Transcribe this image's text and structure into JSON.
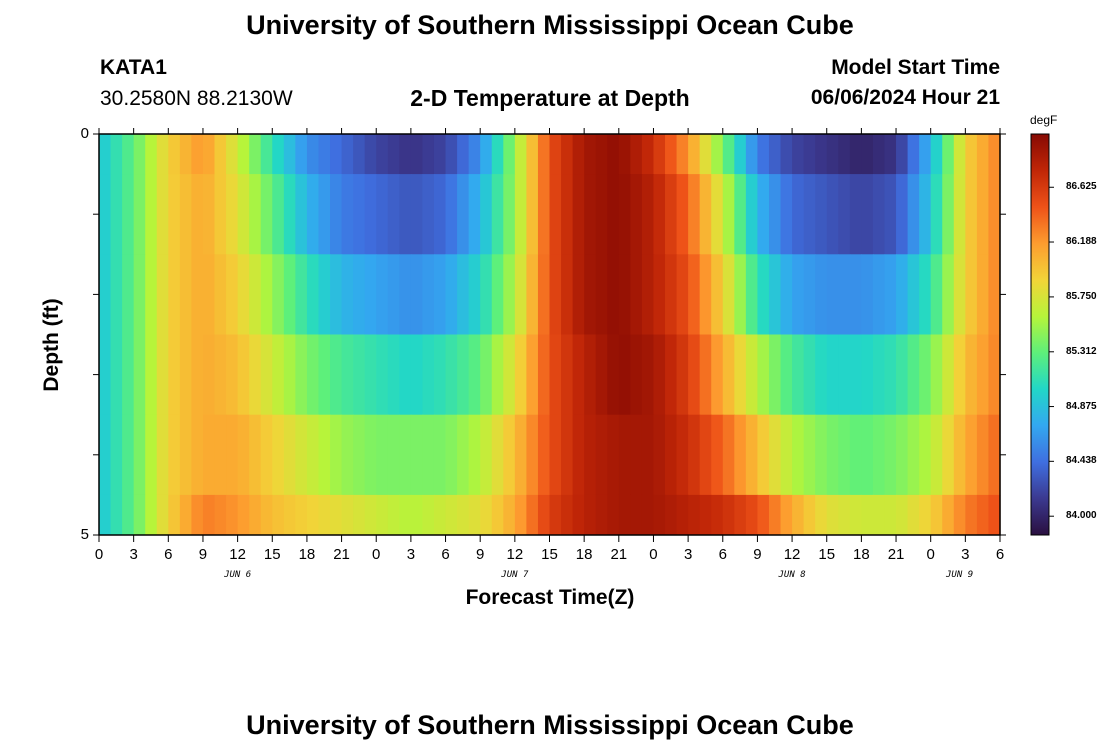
{
  "header": {
    "title": "University of Southern Mississippi Ocean Cube",
    "station": "KATA1",
    "coordinates": "30.2580N  88.2130W",
    "plot_title": "2-D Temperature at Depth",
    "model_start_label": "Model Start Time",
    "model_start_value": "06/06/2024 Hour 21",
    "footer_title": "University of Southern Mississippi Ocean Cube"
  },
  "chart_data": {
    "type": "heatmap",
    "title": "2-D Temperature at Depth",
    "xlabel": "Forecast Time(Z)",
    "ylabel": "Depth (ft)",
    "ylim": [
      0,
      5
    ],
    "yticks": [
      "0",
      "5"
    ],
    "xticks": [
      "0",
      "3",
      "6",
      "9",
      "12",
      "15",
      "18",
      "21",
      "0",
      "3",
      "6",
      "9",
      "12",
      "15",
      "18",
      "21",
      "0",
      "3",
      "6",
      "9",
      "12",
      "15",
      "18",
      "21",
      "0",
      "3",
      "6"
    ],
    "date_labels": [
      "JUN 6",
      "JUN 7",
      "JUN 8",
      "JUN 9"
    ],
    "x_hours_start": 0,
    "x_hours_end": 78,
    "depth_bands": [
      [
        0,
        0.5
      ],
      [
        0.5,
        1.5
      ],
      [
        1.5,
        2.5
      ],
      [
        2.5,
        3.5
      ],
      [
        3.5,
        4.5
      ],
      [
        4.5,
        5
      ]
    ],
    "colorbar": {
      "unit": "degF",
      "ticks": [
        "84.000",
        "84.438",
        "84.875",
        "85.312",
        "85.750",
        "86.188",
        "86.625"
      ],
      "min": 83.85,
      "max": 87.05,
      "colors": [
        "#2a0f3f",
        "#3b3990",
        "#3f6fe0",
        "#33a8f0",
        "#22d7c7",
        "#5ef07a",
        "#b6f43a",
        "#f2d438",
        "#fd9c2f",
        "#ee5218",
        "#c02607",
        "#870a03"
      ]
    },
    "temperature_degF": [
      {
        "depth": "0-0.5",
        "hours": [
          0,
          3,
          6,
          9,
          12,
          15,
          18,
          21,
          24,
          27,
          30,
          33,
          36,
          39,
          42,
          45,
          48,
          51,
          54,
          57,
          60,
          63,
          66,
          69,
          72,
          75,
          78
        ],
        "values": [
          84.9,
          85.3,
          85.9,
          86.2,
          85.7,
          85.1,
          84.6,
          84.4,
          84.2,
          84.1,
          84.2,
          84.6,
          85.5,
          86.5,
          86.9,
          87.0,
          86.7,
          86.2,
          85.4,
          84.5,
          84.2,
          84.1,
          84.0,
          84.1,
          84.8,
          85.9,
          86.3
        ]
      },
      {
        "depth": "0.5-1.5",
        "hours": [
          0,
          3,
          6,
          9,
          12,
          15,
          18,
          21,
          24,
          27,
          30,
          33,
          36,
          39,
          42,
          45,
          48,
          51,
          54,
          57,
          60,
          63,
          66,
          69,
          72,
          75,
          78
        ],
        "values": [
          84.9,
          85.3,
          85.9,
          86.1,
          85.8,
          85.3,
          84.8,
          84.5,
          84.4,
          84.3,
          84.4,
          84.8,
          85.5,
          86.5,
          86.9,
          87.0,
          86.8,
          86.4,
          85.7,
          84.8,
          84.4,
          84.3,
          84.2,
          84.3,
          84.9,
          85.9,
          86.3
        ]
      },
      {
        "depth": "1.5-2.5",
        "hours": [
          0,
          3,
          6,
          9,
          12,
          15,
          18,
          21,
          24,
          27,
          30,
          33,
          36,
          39,
          42,
          45,
          48,
          51,
          54,
          57,
          60,
          63,
          66,
          69,
          72,
          75,
          78
        ],
        "values": [
          84.9,
          85.3,
          85.9,
          86.1,
          85.9,
          85.5,
          85.1,
          84.8,
          84.7,
          84.6,
          84.7,
          85.0,
          85.6,
          86.5,
          86.9,
          87.0,
          86.8,
          86.5,
          85.9,
          85.1,
          84.7,
          84.6,
          84.6,
          84.7,
          85.1,
          85.9,
          86.3
        ]
      },
      {
        "depth": "2.5-3.5",
        "hours": [
          0,
          3,
          6,
          9,
          12,
          15,
          18,
          21,
          24,
          27,
          30,
          33,
          36,
          39,
          42,
          45,
          48,
          51,
          54,
          57,
          60,
          63,
          66,
          69,
          72,
          75,
          78
        ],
        "values": [
          84.9,
          85.3,
          85.9,
          86.1,
          86.0,
          85.7,
          85.4,
          85.2,
          85.1,
          85.0,
          85.1,
          85.3,
          85.8,
          86.5,
          86.8,
          87.0,
          86.9,
          86.6,
          86.1,
          85.6,
          85.2,
          85.0,
          85.0,
          85.1,
          85.4,
          86.0,
          86.3
        ]
      },
      {
        "depth": "3.5-4.5",
        "hours": [
          0,
          3,
          6,
          9,
          12,
          15,
          18,
          21,
          24,
          27,
          30,
          33,
          36,
          39,
          42,
          45,
          48,
          51,
          54,
          57,
          60,
          63,
          66,
          69,
          72,
          75,
          78
        ],
        "values": [
          84.9,
          85.3,
          85.9,
          86.1,
          86.1,
          85.9,
          85.7,
          85.5,
          85.4,
          85.4,
          85.4,
          85.6,
          86.0,
          86.5,
          86.8,
          86.9,
          86.9,
          86.7,
          86.4,
          86.0,
          85.6,
          85.4,
          85.3,
          85.4,
          85.6,
          86.1,
          86.4
        ]
      },
      {
        "depth": "4.5-5",
        "hours": [
          0,
          3,
          6,
          9,
          12,
          15,
          18,
          21,
          24,
          27,
          30,
          33,
          36,
          39,
          42,
          45,
          48,
          51,
          54,
          57,
          60,
          63,
          66,
          69,
          72,
          75,
          78
        ],
        "values": [
          84.9,
          85.3,
          85.9,
          86.3,
          86.2,
          86.0,
          85.9,
          85.8,
          85.7,
          85.6,
          85.7,
          85.8,
          86.1,
          86.6,
          86.8,
          86.9,
          86.9,
          86.8,
          86.7,
          86.5,
          86.1,
          85.8,
          85.7,
          85.7,
          85.9,
          86.3,
          86.5
        ]
      }
    ]
  }
}
